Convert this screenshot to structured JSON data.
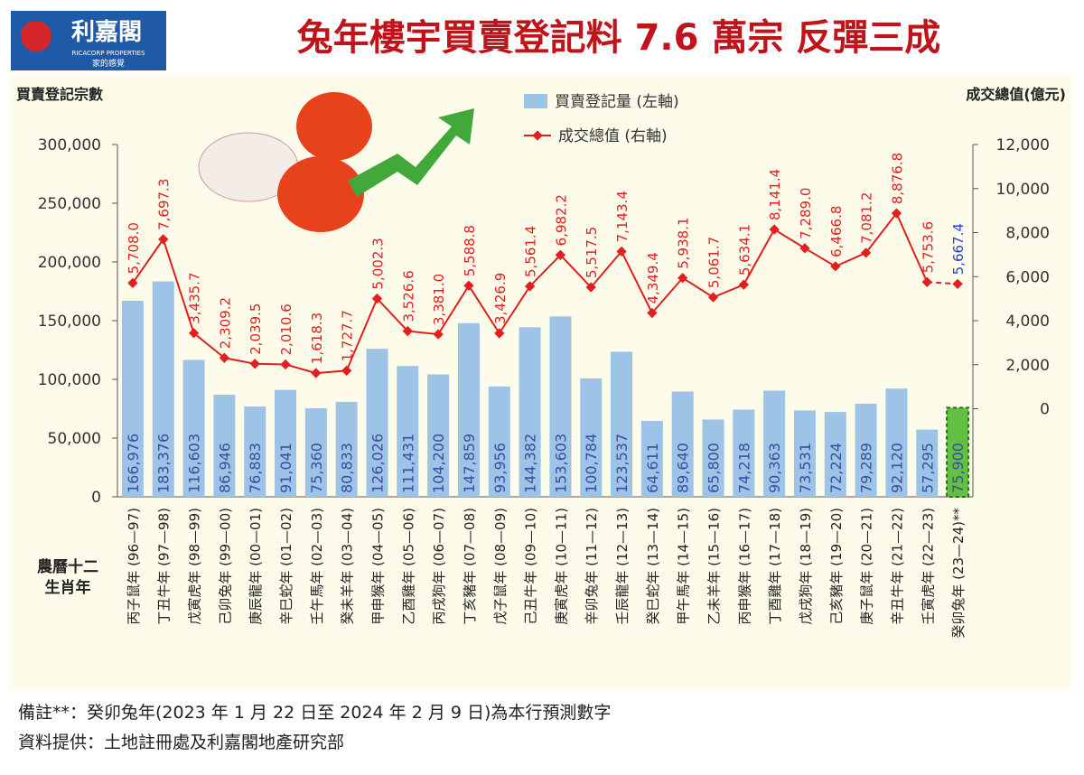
{
  "header": {
    "logo": "利嘉閣",
    "logo_en": "RICACORP PROPERTIES",
    "logo_slogan": "家的感覺"
  },
  "chart_data": {
    "type": "bar-line",
    "title": "兔年樓宇買賣登記料 7.6 萬宗 反彈三成",
    "y_label": "買賣登記宗數",
    "y2_label": "成交總值(億元)",
    "x_label": [
      "農曆十二",
      "生肖年"
    ],
    "categories": [
      "丙子鼠年 (96—97)",
      "丁丑牛年 (97—98)",
      "戊寅虎年 (98—99)",
      "己卯兔年 (99—00)",
      "庚辰龍年 (00—01)",
      "辛巳蛇年 (01—02)",
      "壬午馬年 (02—03)",
      "癸未羊年 (03—04)",
      "甲申猴年 (04—05)",
      "乙酉雞年 (05—06)",
      "丙戌狗年 (06—07)",
      "丁亥豬年 (07—08)",
      "戊子鼠年 (08—09)",
      "己丑牛年 (09—10)",
      "庚寅虎年 (10—11)",
      "辛卯兔年 (11—12)",
      "壬辰龍年 (12—13)",
      "癸巳蛇年 (13—14)",
      "甲午馬年 (14—15)",
      "乙未羊年 (15—16)",
      "丙申猴年 (16—17)",
      "丁酉雞年 (17—18)",
      "戊戌狗年 (18—19)",
      "己亥豬年 (19—20)",
      "庚子鼠年 (20—21)",
      "辛丑牛年 (21—22)",
      "壬寅虎年 (22—23)",
      "癸卯兔年 (23—24)**"
    ],
    "series": [
      {
        "name": "買賣登記量 (左軸)",
        "type": "bar",
        "color": "#9dc3e6",
        "label_color": "#3a4d9e",
        "colors": [
          "#9dc3e6",
          "#9dc3e6",
          "#9dc3e6",
          "#9dc3e6",
          "#9dc3e6",
          "#9dc3e6",
          "#9dc3e6",
          "#9dc3e6",
          "#9dc3e6",
          "#9dc3e6",
          "#9dc3e6",
          "#9dc3e6",
          "#9dc3e6",
          "#9dc3e6",
          "#9dc3e6",
          "#9dc3e6",
          "#9dc3e6",
          "#9dc3e6",
          "#9dc3e6",
          "#9dc3e6",
          "#9dc3e6",
          "#9dc3e6",
          "#9dc3e6",
          "#9dc3e6",
          "#9dc3e6",
          "#9dc3e6",
          "#9dc3e6",
          "#62c043"
        ],
        "values": [
          166976,
          183376,
          116603,
          86946,
          76883,
          91041,
          75360,
          80833,
          126026,
          111431,
          104200,
          147859,
          93956,
          144382,
          153603,
          100784,
          123537,
          64611,
          89640,
          65800,
          74218,
          90363,
          73531,
          72224,
          79289,
          92120,
          57295,
          75900
        ],
        "value_labels": [
          "166,976",
          "183,376",
          "116,603",
          "86,946",
          "76,883",
          "91,041",
          "75,360",
          "80,833",
          "126,026",
          "111,431",
          "104,200",
          "147,859",
          "93,956",
          "144,382",
          "153,603",
          "100,784",
          "123,537",
          "64,611",
          "89,640",
          "65,800",
          "74,218",
          "90,363",
          "73,531",
          "72,224",
          "79,289",
          "92,120",
          "57,295",
          "75,900"
        ]
      },
      {
        "name": "成交總值 (右軸)",
        "type": "line",
        "axis": "y2",
        "color": "#e0201e",
        "label_colors": [
          "#e0201e",
          "#e0201e",
          "#e0201e",
          "#e0201e",
          "#e0201e",
          "#e0201e",
          "#e0201e",
          "#e0201e",
          "#e0201e",
          "#e0201e",
          "#e0201e",
          "#e0201e",
          "#e0201e",
          "#e0201e",
          "#e0201e",
          "#e0201e",
          "#e0201e",
          "#e0201e",
          "#e0201e",
          "#e0201e",
          "#e0201e",
          "#e0201e",
          "#e0201e",
          "#e0201e",
          "#e0201e",
          "#e0201e",
          "#e0201e",
          "#2b3fd0"
        ],
        "values": [
          5708.0,
          7697.3,
          3435.7,
          2309.2,
          2039.5,
          2010.6,
          1618.3,
          1727.7,
          5002.3,
          3526.6,
          3381.0,
          5588.8,
          3426.9,
          5561.4,
          6982.2,
          5517.5,
          7143.4,
          4349.4,
          5938.1,
          5061.7,
          5634.1,
          8141.4,
          7289.0,
          6466.8,
          7081.2,
          8876.8,
          5753.6,
          5667.4
        ],
        "value_labels": [
          "5,708.0",
          "7,697.3",
          "3,435.7",
          "2,309.2",
          "2,039.5",
          "2,010.6",
          "1,618.3",
          "1,727.7",
          "5,002.3",
          "3,526.6",
          "3,381.0",
          "5,588.8",
          "3,426.9",
          "5,561.4",
          "6,982.2",
          "5,517.5",
          "7,143.4",
          "4,349.4",
          "5,938.1",
          "5,061.7",
          "5,634.1",
          "8,141.4",
          "7,289.0",
          "6,466.8",
          "7,081.2",
          "8,876.8",
          "5,753.6",
          "5,667.4"
        ]
      }
    ],
    "ylim": [
      0,
      300000
    ],
    "yticks": [
      0,
      {
        "value": 50000,
        "label": "50,000"
      },
      {
        "value": 100000,
        "label": "100,000"
      },
      {
        "value": 150000,
        "label": "150,000"
      },
      {
        "value": 200000,
        "label": "200,000"
      },
      {
        "value": 250000,
        "label": "250,000"
      },
      {
        "value": 300000,
        "label": "300,000"
      }
    ],
    "y2lim": [
      -4000,
      12000
    ],
    "y2ticks": [
      0,
      {
        "value": 2000,
        "label": "2,000"
      },
      {
        "value": 4000,
        "label": "4,000"
      },
      {
        "value": 6000,
        "label": "6,000"
      },
      {
        "value": 8000,
        "label": "8,000"
      },
      {
        "value": 10000,
        "label": "10,000"
      },
      {
        "value": 12000,
        "label": "12,000"
      }
    ],
    "notes": [
      "備註**：癸卯兔年(2023 年 1 月 22 日至 2024 年 2 月 9 日)為本行預測數字",
      "資料提供：土地註冊處及利嘉閣地產研究部"
    ]
  }
}
